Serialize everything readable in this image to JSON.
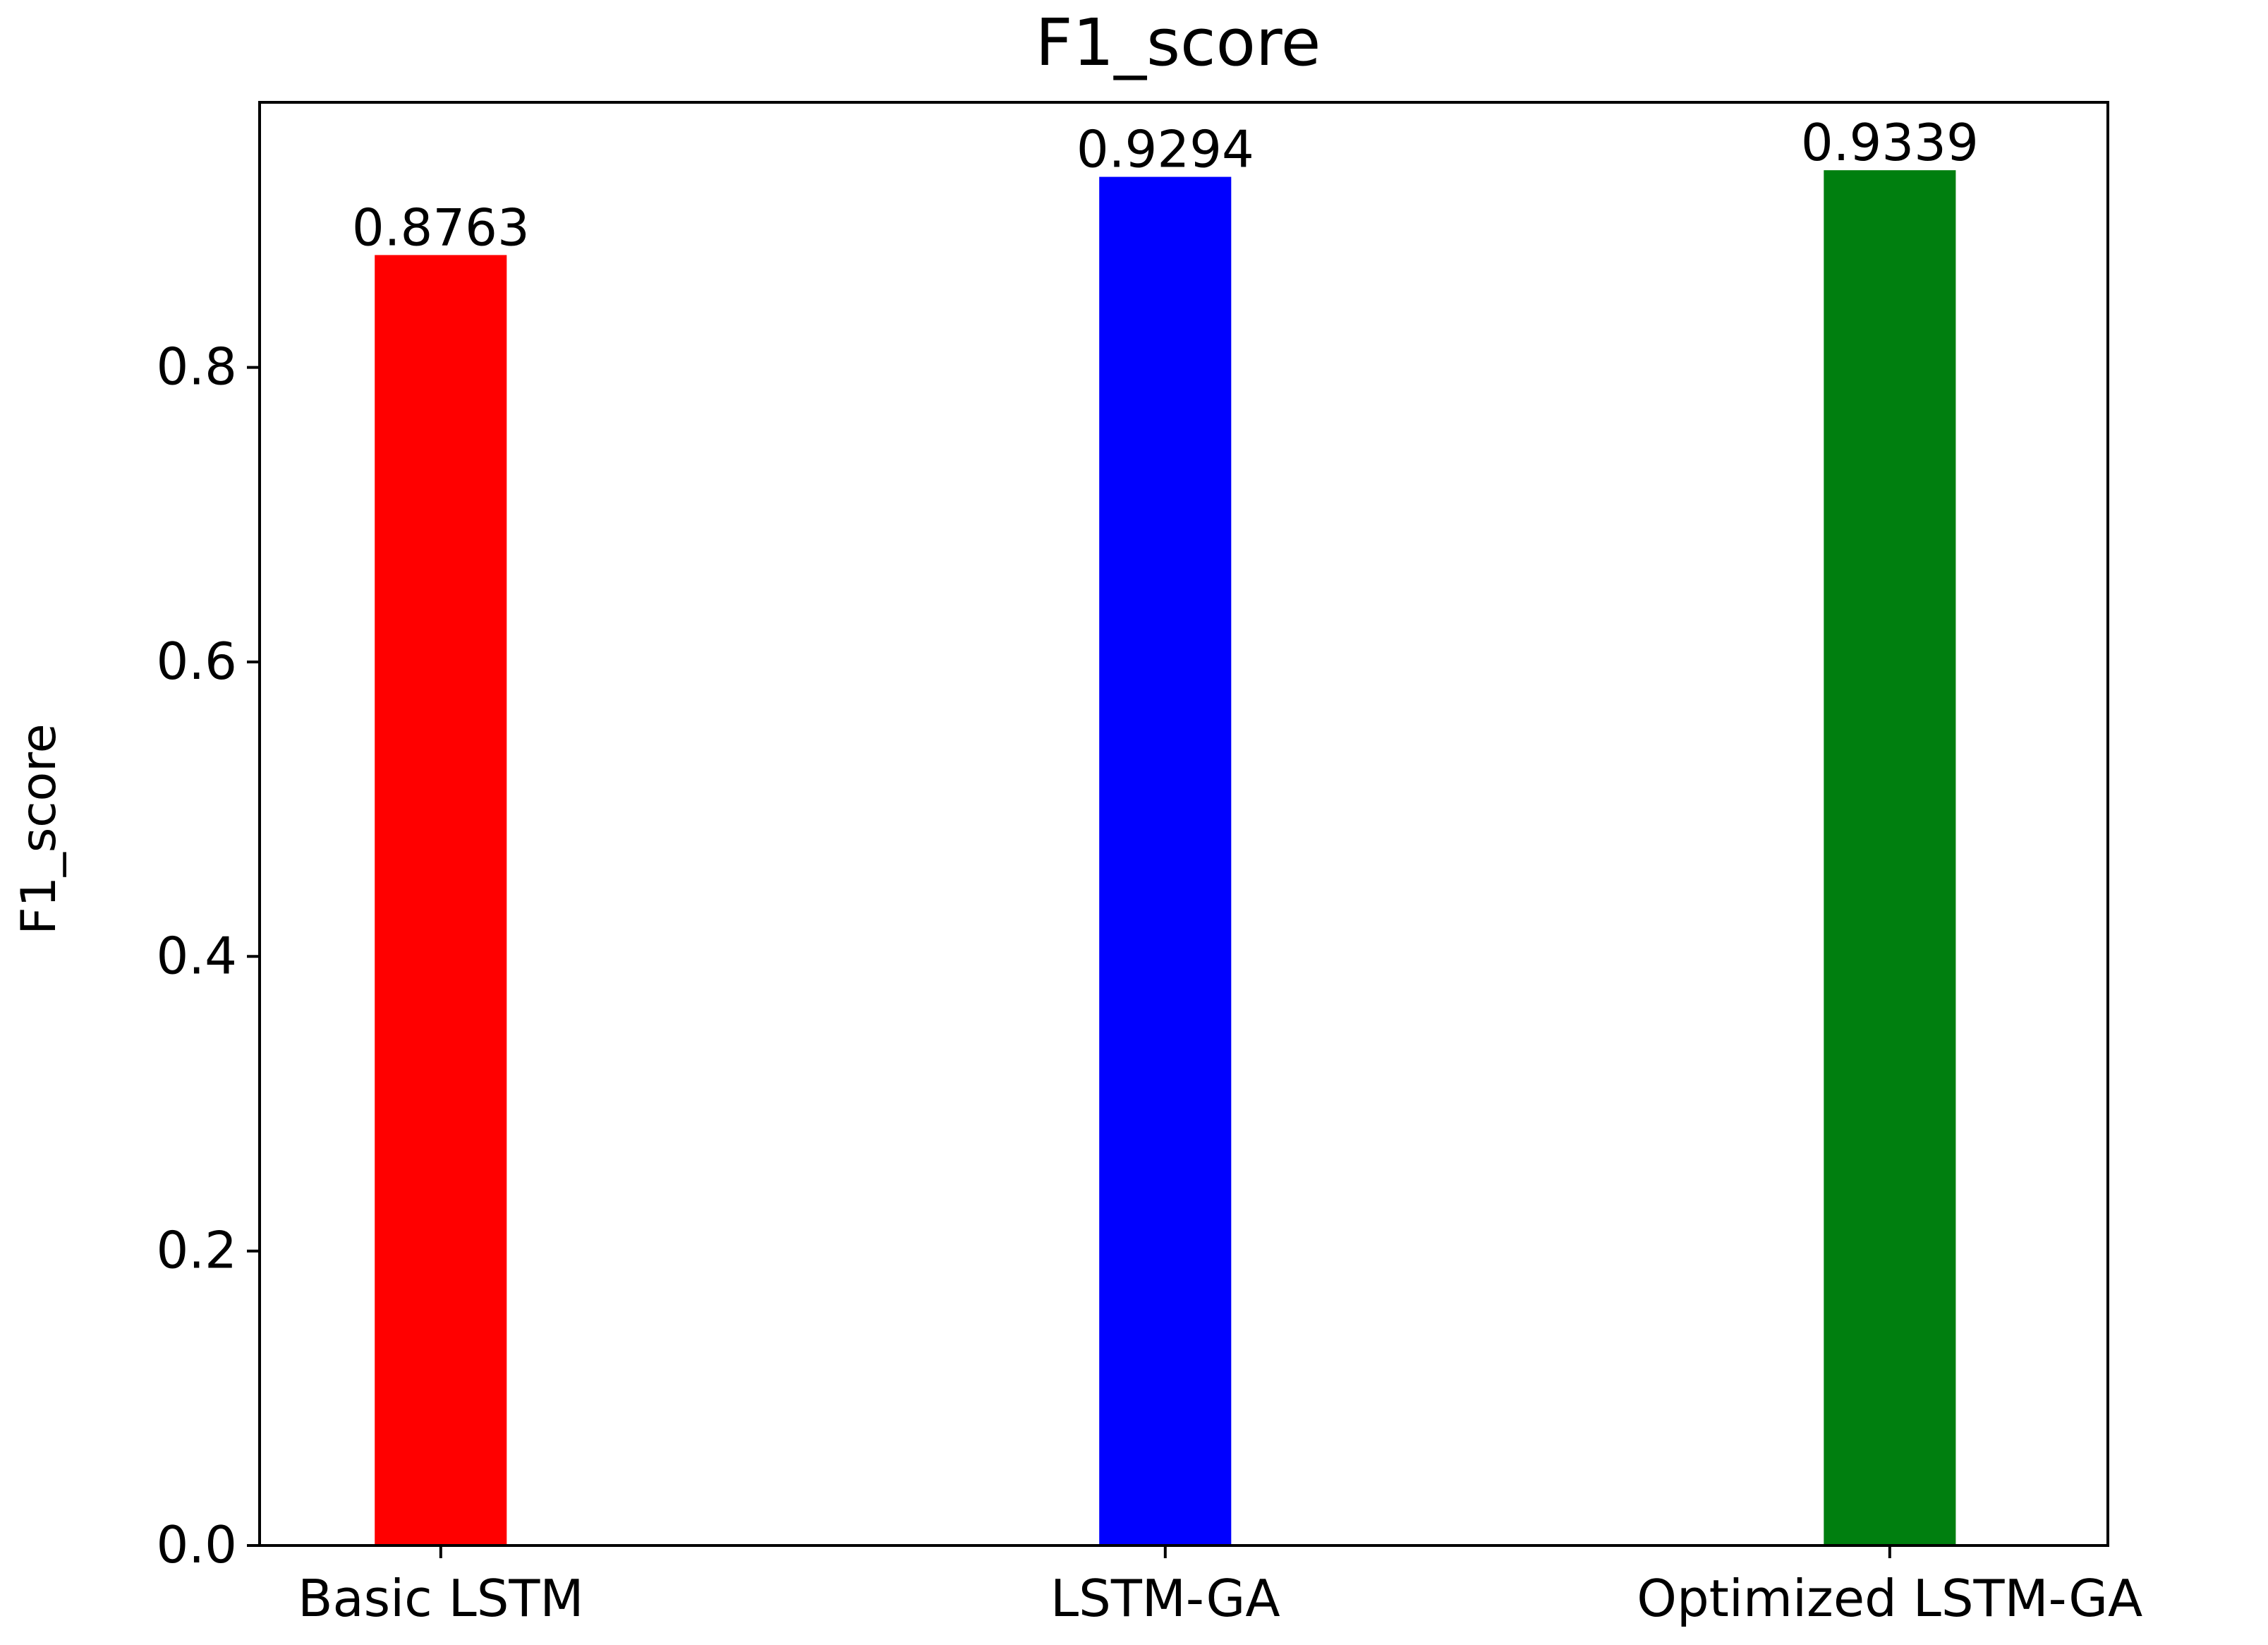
{
  "chart_data": {
    "type": "bar",
    "title": "F1_score",
    "xlabel": "",
    "ylabel": "F1_score",
    "categories": [
      "Basic LSTM",
      "LSTM-GA",
      "Optimized LSTM-GA"
    ],
    "values": [
      0.8763,
      0.9294,
      0.9339
    ],
    "data_labels": [
      "0.8763",
      "0.9294",
      "0.9339"
    ],
    "colors": [
      "#ff0000",
      "#0000ff",
      "#007f0f"
    ],
    "ylim": [
      0,
      0.98
    ],
    "yticks": [
      0.0,
      0.2,
      0.4,
      0.6,
      0.8
    ],
    "ytick_labels": [
      "0.0",
      "0.2",
      "0.4",
      "0.6",
      "0.8"
    ],
    "grid": false,
    "legend": "none"
  }
}
